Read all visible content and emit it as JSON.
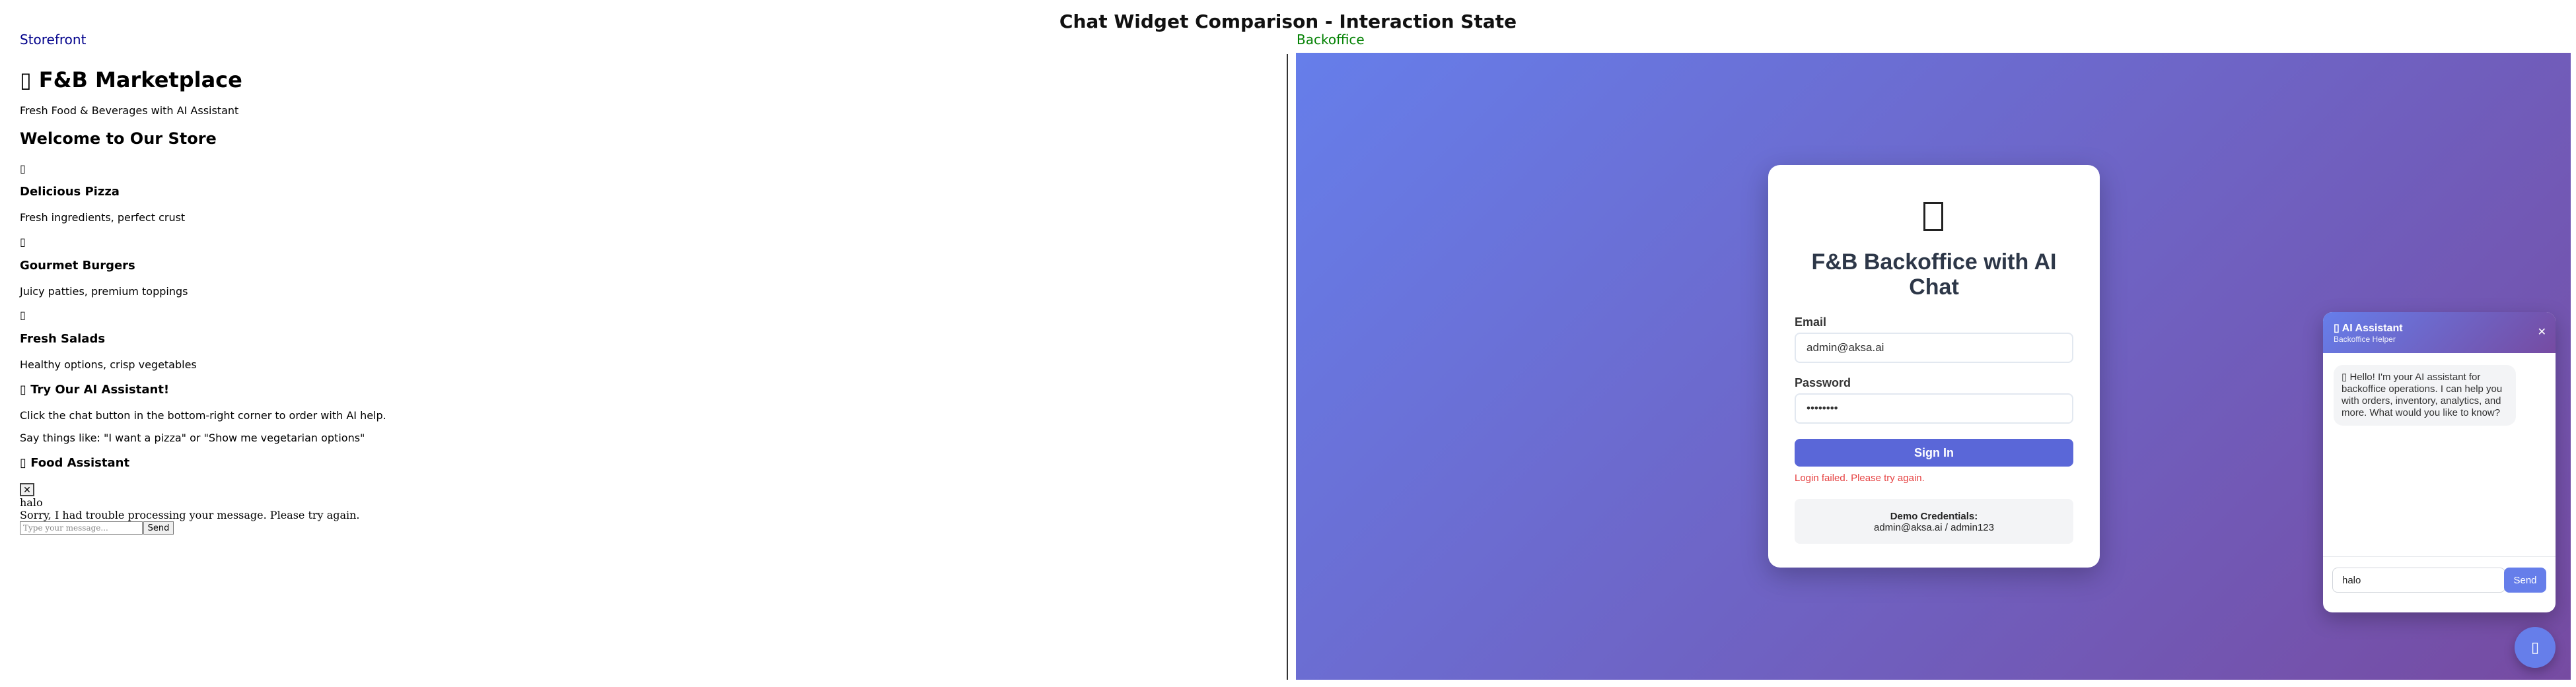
{
  "page": {
    "title": "Chat Widget Comparison - Interaction State"
  },
  "labels": {
    "storefront": "Storefront",
    "backoffice": "Backoffice"
  },
  "storefront": {
    "heading_icon": "▯",
    "heading": "F&B Marketplace",
    "tagline": "Fresh Food & Beverages with AI Assistant",
    "welcome": "Welcome to Our Store",
    "categories": [
      {
        "icon": "▯",
        "name": "Delicious Pizza",
        "desc": "Fresh ingredients, perfect crust"
      },
      {
        "icon": "▯",
        "name": "Gourmet Burgers",
        "desc": "Juicy patties, premium toppings"
      },
      {
        "icon": "▯",
        "name": "Fresh Salads",
        "desc": "Healthy options, crisp vegetables"
      }
    ],
    "try_icon": "▯",
    "try_heading": "Try Our AI Assistant!",
    "instructions": "Click the chat button in the bottom-right corner to order with AI help.",
    "examples": "Say things like: \"I want a pizza\" or \"Show me vegetarian options\"",
    "assistant_icon": "▯",
    "assistant_heading": "Food Assistant",
    "close_label": "✕",
    "user_message": "halo",
    "bot_error": "Sorry, I had trouble processing your message. Please try again.",
    "input_placeholder": "Type your message...",
    "send_label": "Send"
  },
  "backoffice": {
    "title": "F&B Backoffice with AI Chat",
    "email_label": "Email",
    "email_value": "admin@aksa.ai",
    "password_label": "Password",
    "password_value": "••••••••",
    "signin_label": "Sign In",
    "error": "Login failed. Please try again.",
    "demo_title": "Demo Credentials:",
    "demo_value": "admin@aksa.ai / admin123",
    "chat": {
      "title_icon": "▯",
      "title": "AI Assistant",
      "subtitle": "Backoffice Helper",
      "close_label": "✕",
      "bubble_icon": "▯",
      "greeting": "Hello! I'm your AI assistant for backoffice operations. I can help you with orders, inventory, analytics, and more. What would you like to know?",
      "input_value": "halo",
      "send_label": "Send"
    },
    "fab_icon": "▯"
  },
  "colors": {
    "gradient_start": "#667eea",
    "gradient_end": "#764ba2",
    "button": "#5a67d8",
    "error": "#e53e3e",
    "storefront_label": "#00008b",
    "backoffice_label": "#008000"
  }
}
